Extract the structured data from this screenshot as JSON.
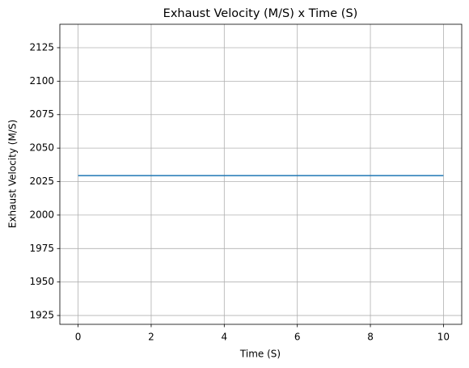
{
  "chart_data": {
    "type": "line",
    "title": "Exhaust Velocity (M/S) x Time (S)",
    "x_label": "Time (S)",
    "y_label": "Exhaust Velocity (M/S)",
    "x": [
      0,
      1,
      2,
      3,
      4,
      5,
      6,
      7,
      8,
      9,
      10
    ],
    "series": [
      {
        "color": "#1f77b4",
        "values": [
          2029.5,
          2029.5,
          2029.5,
          2029.5,
          2029.5,
          2029.5,
          2029.5,
          2029.5,
          2029.5,
          2029.5,
          2029.5
        ]
      }
    ],
    "xlim": [
      -0.5,
      10.5
    ],
    "xticks": [
      0,
      2,
      4,
      6,
      8,
      10
    ],
    "ylim": [
      1918.4,
      2142.5
    ],
    "yticks": [
      1925,
      1950,
      1975,
      2000,
      2025,
      2050,
      2075,
      2100,
      2125
    ],
    "grid": true
  }
}
